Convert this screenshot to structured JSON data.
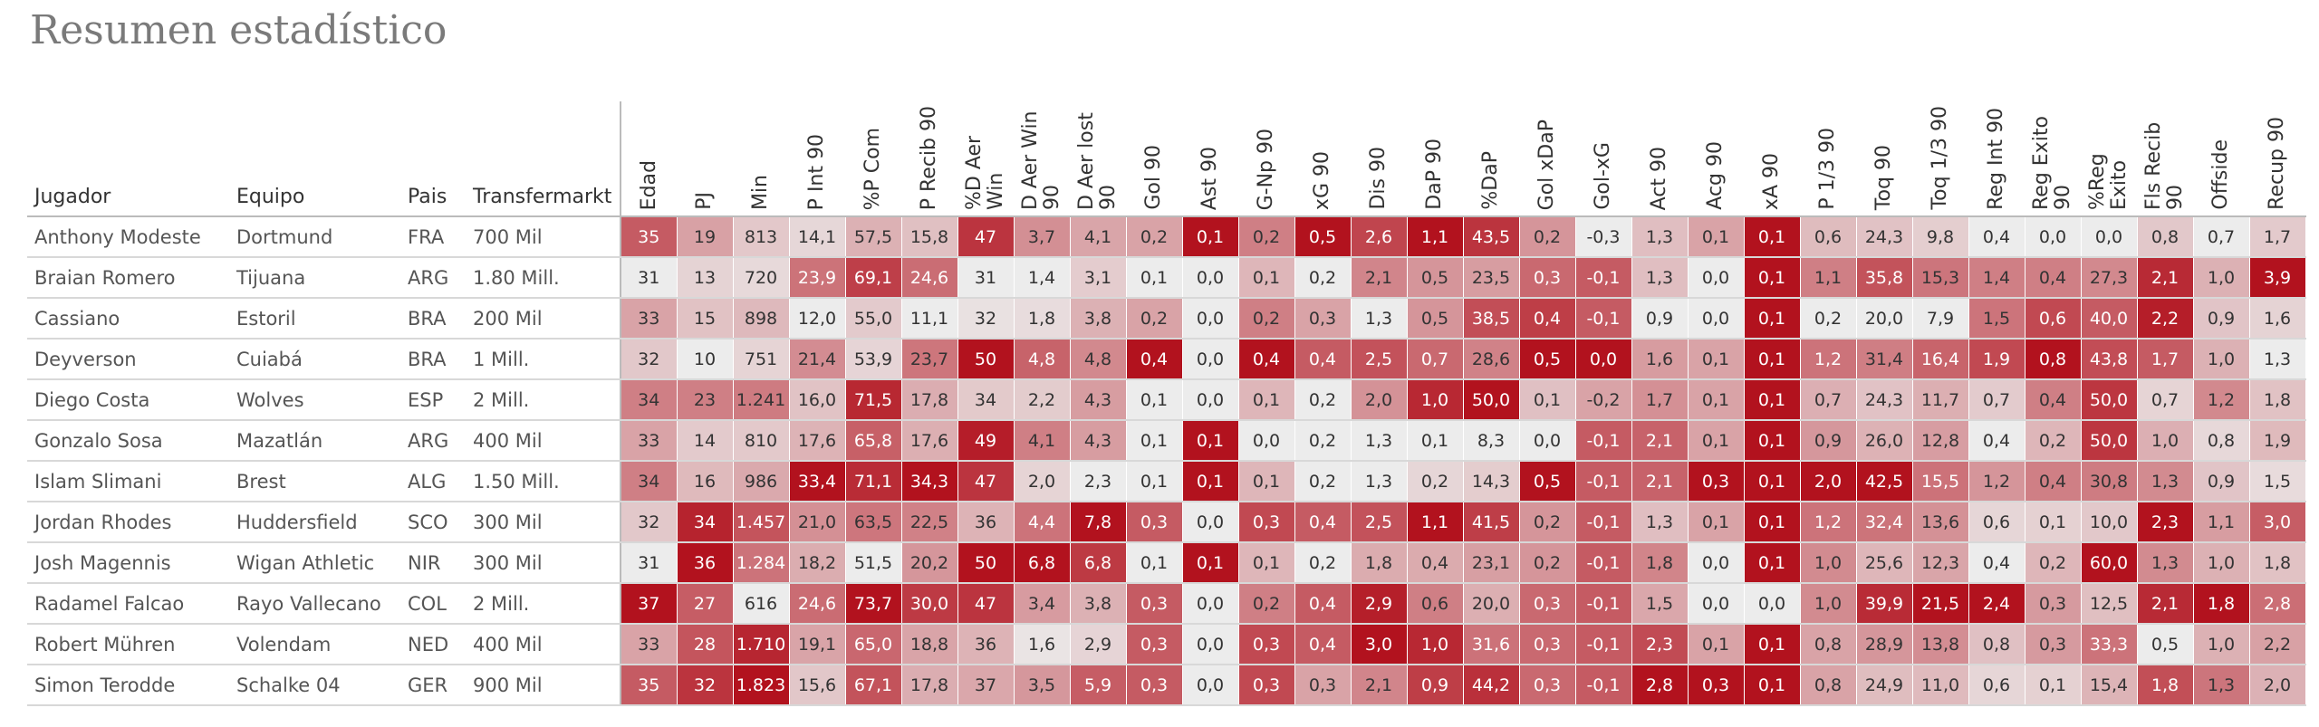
{
  "header": {
    "title": "Resumen estadístico"
  },
  "table": {
    "columns": [
      "Jugador",
      "Equipo",
      "Pais",
      "Transfermarkt",
      "Edad",
      "PJ",
      "Min",
      "P Int 90",
      "%P Com",
      "P Recib 90",
      "%D Aer Win",
      "D Aer Win 90",
      "D Aer lost 90",
      "Gol 90",
      "Ast 90",
      "G-Np 90",
      "xG 90",
      "Dis 90",
      "DaP 90",
      "%DaP",
      "Gol xDaP",
      "Gol-xG",
      "Act 90",
      "Acg 90",
      "xA 90",
      "P 1/3 90",
      "Toq 90",
      "Toq 1/3 90",
      "Reg Int 90",
      "Reg Exito 90",
      "%Reg Exito",
      "Fls Recib 90",
      "Offside",
      "Recup 90"
    ],
    "rows": [
      [
        "Anthony Modeste",
        "Dortmund",
        "FRA",
        "700 Mil",
        "35",
        "19",
        "813",
        "14,1",
        "57,5",
        "15,8",
        "47",
        "3,7",
        "4,1",
        "0,2",
        "0,1",
        "0,2",
        "0,5",
        "2,6",
        "1,1",
        "43,5",
        "0,2",
        "-0,3",
        "1,3",
        "0,1",
        "0,1",
        "0,6",
        "24,3",
        "9,8",
        "0,4",
        "0,0",
        "0,0",
        "0,8",
        "0,7",
        "1,7"
      ],
      [
        "Braian Romero",
        "Tijuana",
        "ARG",
        "1.80 Mill.",
        "31",
        "13",
        "720",
        "23,9",
        "69,1",
        "24,6",
        "31",
        "1,4",
        "3,1",
        "0,1",
        "0,0",
        "0,1",
        "0,2",
        "2,1",
        "0,5",
        "23,5",
        "0,3",
        "-0,1",
        "1,3",
        "0,0",
        "0,1",
        "1,1",
        "35,8",
        "15,3",
        "1,4",
        "0,4",
        "27,3",
        "2,1",
        "1,0",
        "3,9"
      ],
      [
        "Cassiano",
        "Estoril",
        "BRA",
        "200 Mil",
        "33",
        "15",
        "898",
        "12,0",
        "55,0",
        "11,1",
        "32",
        "1,8",
        "3,8",
        "0,2",
        "0,0",
        "0,2",
        "0,3",
        "1,3",
        "0,5",
        "38,5",
        "0,4",
        "-0,1",
        "0,9",
        "0,0",
        "0,1",
        "0,2",
        "20,0",
        "7,9",
        "1,5",
        "0,6",
        "40,0",
        "2,2",
        "0,9",
        "1,6"
      ],
      [
        "Deyverson",
        "Cuiabá",
        "BRA",
        "1 Mill.",
        "32",
        "10",
        "751",
        "21,4",
        "53,9",
        "23,7",
        "50",
        "4,8",
        "4,8",
        "0,4",
        "0,0",
        "0,4",
        "0,4",
        "2,5",
        "0,7",
        "28,6",
        "0,5",
        "0,0",
        "1,6",
        "0,1",
        "0,1",
        "1,2",
        "31,4",
        "16,4",
        "1,9",
        "0,8",
        "43,8",
        "1,7",
        "1,0",
        "1,3"
      ],
      [
        "Diego Costa",
        "Wolves",
        "ESP",
        "2 Mill.",
        "34",
        "23",
        "1.241",
        "16,0",
        "71,5",
        "17,8",
        "34",
        "2,2",
        "4,3",
        "0,1",
        "0,0",
        "0,1",
        "0,2",
        "2,0",
        "1,0",
        "50,0",
        "0,1",
        "-0,2",
        "1,7",
        "0,1",
        "0,1",
        "0,7",
        "24,3",
        "11,7",
        "0,7",
        "0,4",
        "50,0",
        "0,7",
        "1,2",
        "1,8"
      ],
      [
        "Gonzalo Sosa",
        "Mazatlán",
        "ARG",
        "400 Mil",
        "33",
        "14",
        "810",
        "17,6",
        "65,8",
        "17,6",
        "49",
        "4,1",
        "4,3",
        "0,1",
        "0,1",
        "0,0",
        "0,2",
        "1,3",
        "0,1",
        "8,3",
        "0,0",
        "-0,1",
        "2,1",
        "0,1",
        "0,1",
        "0,9",
        "26,0",
        "12,8",
        "0,4",
        "0,2",
        "50,0",
        "1,0",
        "0,8",
        "1,9"
      ],
      [
        "Islam Slimani",
        "Brest",
        "ALG",
        "1.50 Mill.",
        "34",
        "16",
        "986",
        "33,4",
        "71,1",
        "34,3",
        "47",
        "2,0",
        "2,3",
        "0,1",
        "0,1",
        "0,1",
        "0,2",
        "1,3",
        "0,2",
        "14,3",
        "0,5",
        "-0,1",
        "2,1",
        "0,3",
        "0,1",
        "2,0",
        "42,5",
        "15,5",
        "1,2",
        "0,4",
        "30,8",
        "1,3",
        "0,9",
        "1,5"
      ],
      [
        "Jordan Rhodes",
        "Huddersfield",
        "SCO",
        "300 Mil",
        "32",
        "34",
        "1.457",
        "21,0",
        "63,5",
        "22,5",
        "36",
        "4,4",
        "7,8",
        "0,3",
        "0,0",
        "0,3",
        "0,4",
        "2,5",
        "1,1",
        "41,5",
        "0,2",
        "-0,1",
        "1,3",
        "0,1",
        "0,1",
        "1,2",
        "32,4",
        "13,6",
        "0,6",
        "0,1",
        "10,0",
        "2,3",
        "1,1",
        "3,0"
      ],
      [
        "Josh Magennis",
        "Wigan Athletic",
        "NIR",
        "300 Mil",
        "31",
        "36",
        "1.284",
        "18,2",
        "51,5",
        "20,2",
        "50",
        "6,8",
        "6,8",
        "0,1",
        "0,1",
        "0,1",
        "0,2",
        "1,8",
        "0,4",
        "23,1",
        "0,2",
        "-0,1",
        "1,8",
        "0,0",
        "0,1",
        "1,0",
        "25,6",
        "12,3",
        "0,4",
        "0,2",
        "60,0",
        "1,3",
        "1,0",
        "1,8"
      ],
      [
        "Radamel Falcao",
        "Rayo Vallecano",
        "COL",
        "2 Mill.",
        "37",
        "27",
        "616",
        "24,6",
        "73,7",
        "30,0",
        "47",
        "3,4",
        "3,8",
        "0,3",
        "0,0",
        "0,2",
        "0,4",
        "2,9",
        "0,6",
        "20,0",
        "0,3",
        "-0,1",
        "1,5",
        "0,0",
        "0,0",
        "1,0",
        "39,9",
        "21,5",
        "2,4",
        "0,3",
        "12,5",
        "2,1",
        "1,8",
        "2,8"
      ],
      [
        "Robert Mühren",
        "Volendam",
        "NED",
        "400 Mil",
        "33",
        "28",
        "1.710",
        "19,1",
        "65,0",
        "18,8",
        "36",
        "1,6",
        "2,9",
        "0,3",
        "0,0",
        "0,3",
        "0,4",
        "3,0",
        "1,0",
        "31,6",
        "0,3",
        "-0,1",
        "2,3",
        "0,1",
        "0,1",
        "0,8",
        "28,9",
        "13,8",
        "0,8",
        "0,3",
        "33,3",
        "0,5",
        "1,0",
        "2,2"
      ],
      [
        "Simon Terodde",
        "Schalke 04",
        "GER",
        "900 Mil",
        "35",
        "32",
        "1.823",
        "15,6",
        "67,1",
        "17,8",
        "37",
        "3,5",
        "5,9",
        "0,3",
        "0,0",
        "0,3",
        "0,3",
        "2,1",
        "0,9",
        "44,2",
        "0,3",
        "-0,1",
        "2,8",
        "0,3",
        "0,1",
        "0,8",
        "24,9",
        "11,0",
        "0,6",
        "0,1",
        "15,4",
        "1,8",
        "1,3",
        "2,0"
      ]
    ]
  }
}
